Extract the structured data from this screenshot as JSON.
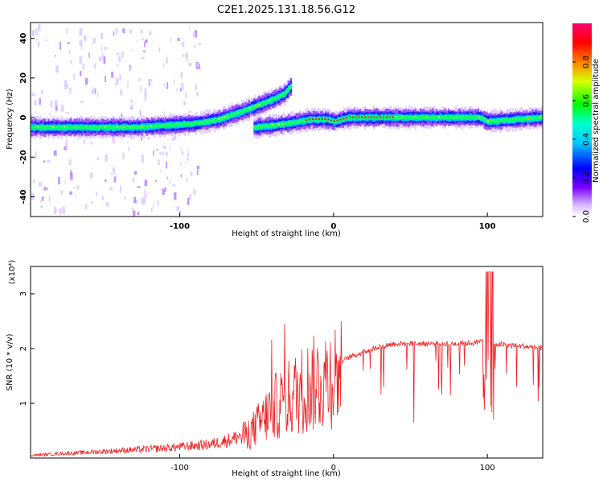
{
  "title": "C2E1.2025.131.18.56.G12",
  "chart_data": [
    {
      "type": "heatmap",
      "xlabel": "Height of straight line (km)",
      "ylabel": "Frequency (Hz)",
      "xlim": [
        -197,
        136
      ],
      "ylim": [
        -50,
        48
      ],
      "xticks": [
        -100,
        0,
        100
      ],
      "xtick_labels": [
        "-100",
        "0",
        "100"
      ],
      "yticks": [
        -40,
        -20,
        0,
        20,
        40
      ],
      "ytick_labels": [
        "-40",
        "-20",
        "0",
        "20",
        "40"
      ],
      "colorbar": {
        "label": "Normalized spectral amplitude",
        "range": [
          0,
          1
        ],
        "ticks": [
          0.0,
          0.2,
          0.4,
          0.6,
          0.8
        ],
        "tick_labels": [
          "0.0",
          "0.2",
          "0.4",
          "0.6",
          "0.8"
        ],
        "colormap": [
          "#ffffff",
          "#d0b0ff",
          "#7a00ff",
          "#0000ff",
          "#00c0ff",
          "#00ffff",
          "#00ff00",
          "#ffff00",
          "#ff8000",
          "#ff0000",
          "#ff0080"
        ]
      },
      "ridges": [
        {
          "x": [
            -197,
            -170,
            -150,
            -130,
            -110,
            -90,
            -75,
            -60,
            -50,
            -40,
            -32,
            -28
          ],
          "y": [
            -5,
            -5,
            -5,
            -5,
            -4,
            -3,
            -1,
            3,
            6,
            9,
            12,
            16
          ]
        },
        {
          "x": [
            -52,
            -40,
            -30,
            -22,
            -15,
            -5,
            0,
            10,
            30,
            60,
            95,
            100,
            136
          ],
          "y": [
            -5,
            -4,
            -3,
            -2,
            -1,
            -1,
            -2,
            0,
            0,
            0,
            0,
            -2,
            0
          ]
        }
      ]
    },
    {
      "type": "line",
      "xlabel": "Height of straight line (km)",
      "ylabel": "SNR (10 * v/v)",
      "y_multiplier": "(x10⁴)",
      "xlim": [
        -197,
        136
      ],
      "ylim": [
        0,
        3.5
      ],
      "xticks": [
        -100,
        0,
        100
      ],
      "xtick_labels": [
        "-100",
        "0",
        "100"
      ],
      "yticks": [
        1,
        2,
        3
      ],
      "ytick_labels": [
        "1",
        "2",
        "3"
      ],
      "color": "#ee2222",
      "envelope": {
        "x": [
          -197,
          -150,
          -110,
          -80,
          -65,
          -55,
          -45,
          -40,
          -30,
          -20,
          -10,
          0,
          10,
          20,
          30,
          40,
          50,
          60,
          80,
          95,
          100,
          103,
          110,
          120,
          136
        ],
        "y": [
          0.05,
          0.12,
          0.18,
          0.25,
          0.35,
          0.5,
          0.8,
          1.0,
          1.2,
          1.4,
          1.55,
          1.7,
          1.85,
          1.95,
          2.05,
          2.1,
          2.1,
          2.1,
          2.1,
          2.12,
          2.3,
          2.1,
          2.08,
          2.06,
          2.02
        ]
      }
    }
  ]
}
